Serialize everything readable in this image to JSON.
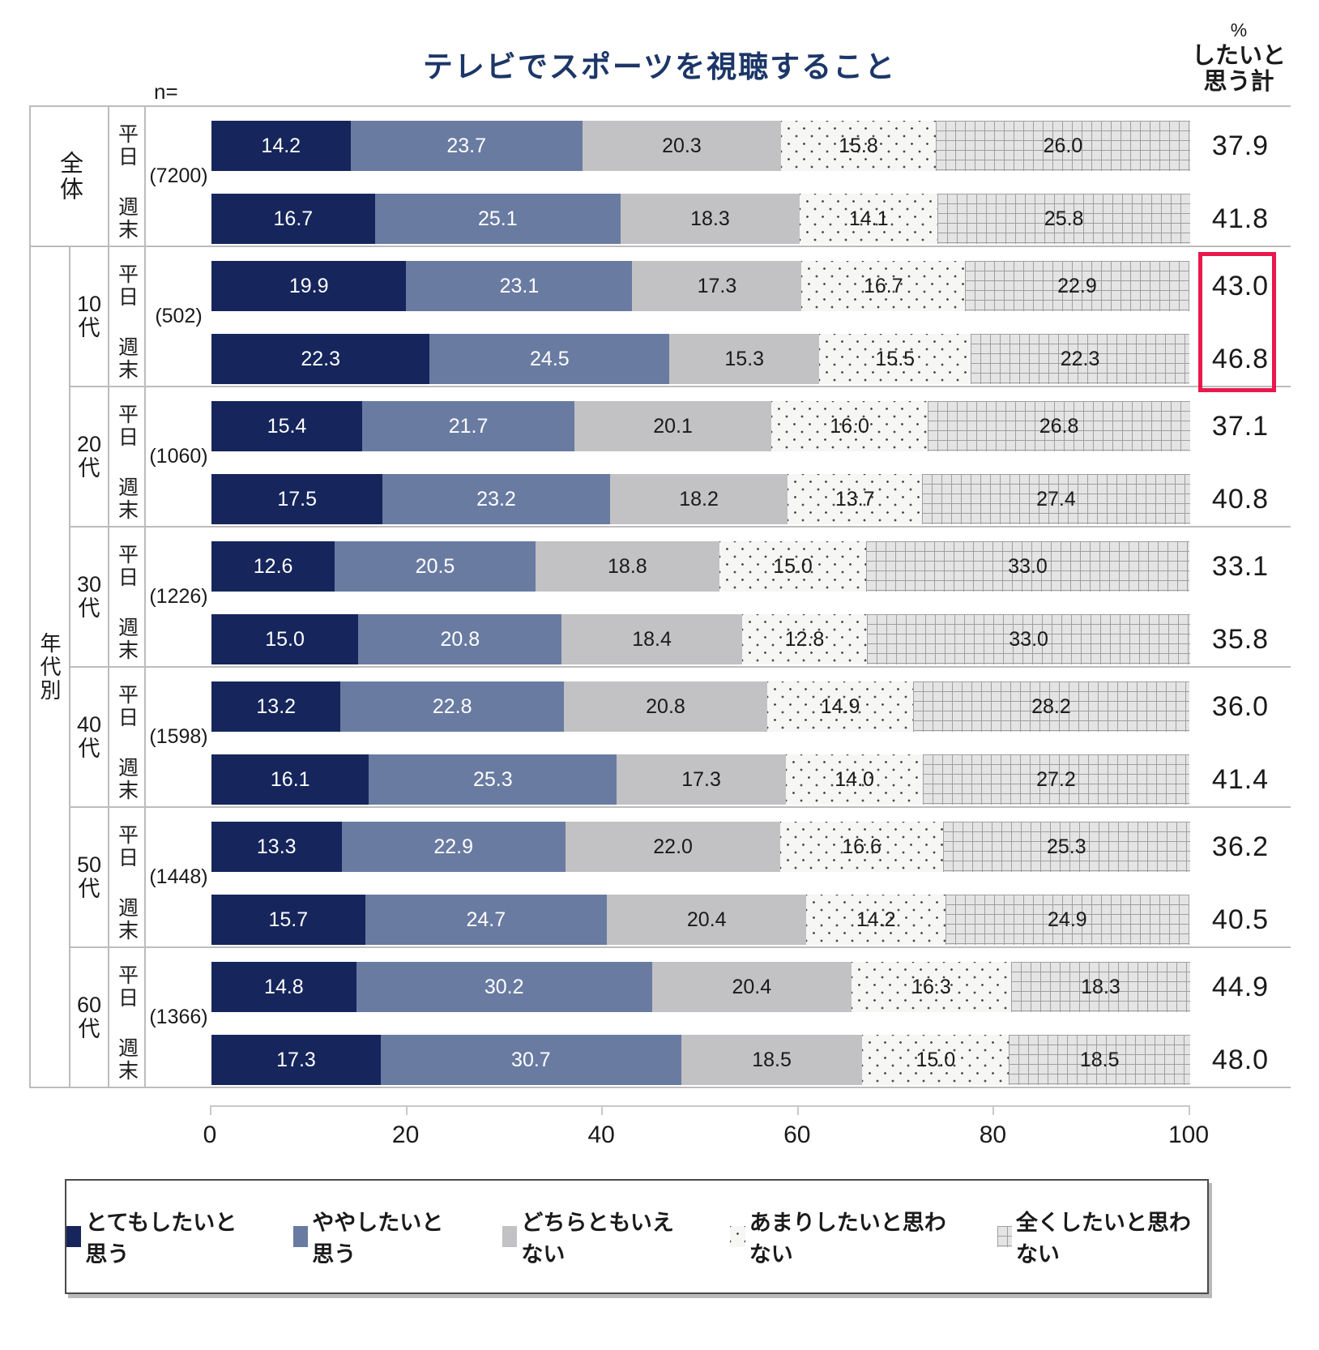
{
  "title": "テレビでスポーツを視聴すること",
  "n_equals_label": "n=",
  "totals_header": {
    "percent_symbol": "%",
    "label_line1": "したいと",
    "label_line2": "思う計"
  },
  "section_label": "年代別",
  "axis": {
    "ticks": [
      "0",
      "20",
      "40",
      "60",
      "80",
      "100"
    ]
  },
  "legend": {
    "items": [
      {
        "label": "とてもしたいと思う",
        "pattern": "navy",
        "color": "#16265C"
      },
      {
        "label": "ややしたいと思う",
        "pattern": "bluegray",
        "color": "#6A7BA2"
      },
      {
        "label": "どちらともいえない",
        "pattern": "gray",
        "color": "#C2C2C4"
      },
      {
        "label": "あまりしたいと思わない",
        "pattern": "dots",
        "color": "#F6F6F5"
      },
      {
        "label": "全くしたいと思わない",
        "pattern": "grid",
        "color": "#E4E4E4"
      }
    ]
  },
  "colors": {
    "title": "#1C3667",
    "highlight_box": "#E8194D",
    "table_border": "#BCBCBC",
    "navy": "#16265C",
    "bluegray": "#6A7BA2",
    "gray": "#C2C2C4"
  },
  "chart_data": {
    "type": "bar",
    "stacked": true,
    "orientation": "horizontal",
    "x_range": [
      0,
      100
    ],
    "series_names": [
      "とてもしたいと思う",
      "ややしたいと思う",
      "どちらともいえない",
      "あまりしたいと思わない",
      "全くしたいと思わない"
    ],
    "highlight_group": "10代",
    "groups": [
      {
        "group": "全体",
        "group_label_lines": [
          "全",
          "体"
        ],
        "n": "(7200)",
        "rows": [
          {
            "label": "平日",
            "values": [
              14.2,
              23.7,
              20.3,
              15.8,
              26.0
            ],
            "total": "37.9"
          },
          {
            "label": "週末",
            "values": [
              16.7,
              25.1,
              18.3,
              14.1,
              25.8
            ],
            "total": "41.8"
          }
        ]
      },
      {
        "group": "10代",
        "group_label_lines": [
          "10",
          "代"
        ],
        "n": "(502)",
        "rows": [
          {
            "label": "平日",
            "values": [
              19.9,
              23.1,
              17.3,
              16.7,
              22.9
            ],
            "total": "43.0"
          },
          {
            "label": "週末",
            "values": [
              22.3,
              24.5,
              15.3,
              15.5,
              22.3
            ],
            "total": "46.8"
          }
        ]
      },
      {
        "group": "20代",
        "group_label_lines": [
          "20",
          "代"
        ],
        "n": "(1060)",
        "rows": [
          {
            "label": "平日",
            "values": [
              15.4,
              21.7,
              20.1,
              16.0,
              26.8
            ],
            "total": "37.1"
          },
          {
            "label": "週末",
            "values": [
              17.5,
              23.2,
              18.2,
              13.7,
              27.4
            ],
            "total": "40.8"
          }
        ]
      },
      {
        "group": "30代",
        "group_label_lines": [
          "30",
          "代"
        ],
        "n": "(1226)",
        "rows": [
          {
            "label": "平日",
            "values": [
              12.6,
              20.5,
              18.8,
              15.0,
              33.0
            ],
            "total": "33.1"
          },
          {
            "label": "週末",
            "values": [
              15.0,
              20.8,
              18.4,
              12.8,
              33.0
            ],
            "total": "35.8"
          }
        ]
      },
      {
        "group": "40代",
        "group_label_lines": [
          "40",
          "代"
        ],
        "n": "(1598)",
        "rows": [
          {
            "label": "平日",
            "values": [
              13.2,
              22.8,
              20.8,
              14.9,
              28.2
            ],
            "total": "36.0"
          },
          {
            "label": "週末",
            "values": [
              16.1,
              25.3,
              17.3,
              14.0,
              27.2
            ],
            "total": "41.4"
          }
        ]
      },
      {
        "group": "50代",
        "group_label_lines": [
          "50",
          "代"
        ],
        "n": "(1448)",
        "rows": [
          {
            "label": "平日",
            "values": [
              13.3,
              22.9,
              22.0,
              16.6,
              25.3
            ],
            "total": "36.2"
          },
          {
            "label": "週末",
            "values": [
              15.7,
              24.7,
              20.4,
              14.2,
              24.9
            ],
            "total": "40.5"
          }
        ]
      },
      {
        "group": "60代",
        "group_label_lines": [
          "60",
          "代"
        ],
        "n": "(1366)",
        "rows": [
          {
            "label": "平日",
            "values": [
              14.8,
              30.2,
              20.4,
              16.3,
              18.3
            ],
            "total": "44.9"
          },
          {
            "label": "週末",
            "values": [
              17.3,
              30.7,
              18.5,
              15.0,
              18.5
            ],
            "total": "48.0"
          }
        ]
      }
    ]
  }
}
